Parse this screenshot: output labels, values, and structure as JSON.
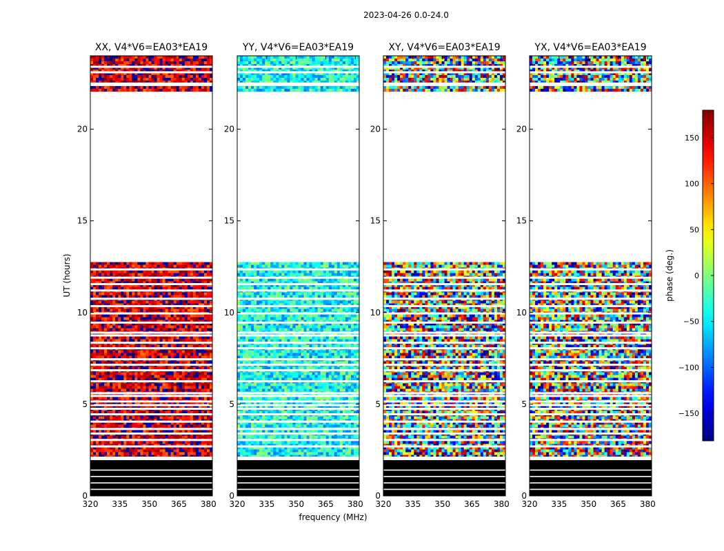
{
  "figure": {
    "suptitle": "2023-04-26 0.0-24.0",
    "xlabel": "frequency (MHz)",
    "ylabel": "UT (hours)"
  },
  "chart_data": {
    "type": "heatmap",
    "title": "2023-04-26 0.0-24.0",
    "xlabel": "frequency (MHz)",
    "ylabel": "UT (hours)",
    "xlim": [
      320,
      382
    ],
    "ylim": [
      0,
      24
    ],
    "xticks": [
      320,
      335,
      350,
      365,
      380
    ],
    "yticks": [
      0,
      5,
      10,
      15,
      20
    ],
    "panels": [
      {
        "title": "XX, V4*V6=EA03*EA19",
        "pol": "XX",
        "bias": 150,
        "spread": 55
      },
      {
        "title": "YY, V4*V6=EA03*EA19",
        "pol": "YY",
        "bias": -40,
        "spread": 55
      },
      {
        "title": "XY, V4*V6=EA03*EA19",
        "pol": "XY",
        "bias": 0,
        "spread": 180
      },
      {
        "title": "YX, V4*V6=EA03*EA19",
        "pol": "YX",
        "bias": 0,
        "spread": 180
      }
    ],
    "data_bands_hours": [
      {
        "start": 2.15,
        "end": 12.75,
        "kind": "noisy"
      },
      {
        "start": 22.05,
        "end": 22.35,
        "kind": "noisy"
      },
      {
        "start": 22.55,
        "end": 24.0,
        "kind": "noisy"
      },
      {
        "start": 0.0,
        "end": 1.95,
        "kind": "flagged-black"
      }
    ],
    "gap_rows_hours": [
      2.7,
      3.05,
      3.4,
      3.65,
      4.05,
      4.45,
      4.75,
      4.95,
      5.15,
      5.45,
      5.6,
      6.25,
      6.85,
      7.15,
      7.45,
      8.05,
      8.35,
      8.75,
      8.9,
      9.45,
      9.95,
      10.35,
      10.75,
      11.2,
      11.55,
      11.9,
      12.35,
      23.1,
      23.4
    ],
    "colorbar": {
      "label": "phase (deg.)",
      "range": [
        -180,
        180
      ],
      "ticks": [
        150,
        100,
        50,
        0,
        -50,
        -100,
        -150
      ],
      "colormap": "jet"
    }
  }
}
